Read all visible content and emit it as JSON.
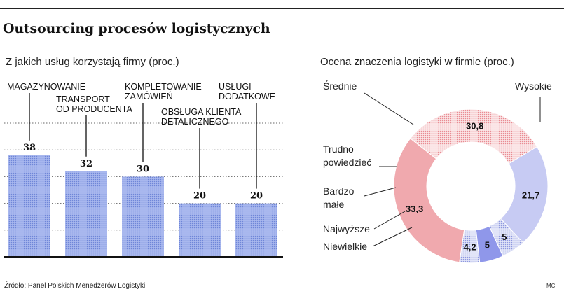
{
  "header": {
    "title": "Outsourcing procesów logistycznych"
  },
  "footer": {
    "source": "Źródło: Panel Polskich Menedżerów Logistyki",
    "credit": "MC"
  },
  "chart_data": [
    {
      "type": "bar",
      "title": "Z jakich usług korzystają firmy (proc.)",
      "categories": [
        [
          "MAGAZYNOWANIE"
        ],
        [
          "TRANSPORT",
          "OD PRODUCENTA"
        ],
        [
          "KOMPLETOWANIE",
          "ZAMÓWIEŃ"
        ],
        [
          "OBSŁUGA KLIENTA",
          "DETALICZNEGO"
        ],
        [
          "USŁUGI",
          "DODATKOWE"
        ]
      ],
      "values": [
        38,
        32,
        30,
        20,
        20
      ],
      "value_labels": [
        "38",
        "32",
        "30",
        "20",
        "20"
      ],
      "ylim": [
        0,
        50
      ],
      "grid": true,
      "colors": {
        "bar": "#a9b8ee",
        "bar_dot": "#6f86d8",
        "grid": "#666666"
      }
    },
    {
      "type": "pie",
      "title": "Ocena znaczenia logistyki w firmie (proc.)",
      "slices": [
        {
          "label": "Średnie",
          "value": 33.3,
          "value_label": "33,3",
          "color": "#f0a9ae",
          "pattern": "solid"
        },
        {
          "label": "Wysokie",
          "value": 30.8,
          "value_label": "30,8",
          "color": "#f7c9cc",
          "pattern": "dots"
        },
        {
          "label": "Niewielkie",
          "value": 21.7,
          "value_label": "21,7",
          "color": "#c7cbf3",
          "pattern": "solid"
        },
        {
          "label": "Najwyższe",
          "value": 5,
          "value_label": "5",
          "color": "#d6dbf6",
          "pattern": "dots"
        },
        {
          "label": "Bardzo małe",
          "label_lines": [
            "Bardzo",
            "małe"
          ],
          "value": 5,
          "value_label": "5",
          "color": "#8f97ea",
          "pattern": "solid"
        },
        {
          "label": "Trudno powiedzieć",
          "label_lines": [
            "Trudno",
            "powiedzieć"
          ],
          "value": 4.2,
          "value_label": "4,2",
          "color": "#e4e7f8",
          "pattern": "dots"
        }
      ]
    }
  ]
}
